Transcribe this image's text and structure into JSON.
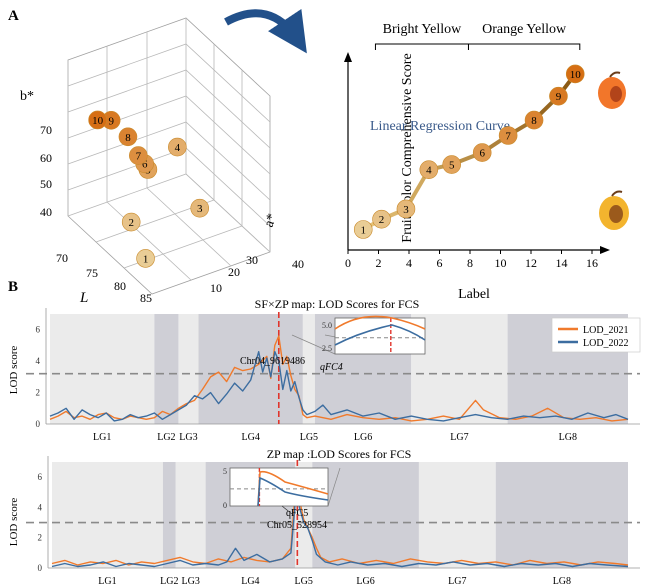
{
  "panel_labels": {
    "a": "A",
    "b": "B"
  },
  "chart_data": [
    {
      "id": "scatter3d",
      "type": "scatter",
      "axes": {
        "x_label": "L",
        "y_label": "a*",
        "z_label": "b*"
      },
      "x_ticks": [
        "70",
        "75",
        "80",
        "85"
      ],
      "y_ticks": [
        "10",
        "20",
        "30",
        "40"
      ],
      "z_ticks": [
        "40",
        "50",
        "60",
        "70"
      ],
      "points": [
        {
          "label": "1",
          "L": 84,
          "a": 8,
          "b": 35
        },
        {
          "label": "2",
          "L": 82,
          "a": 6,
          "b": 44
        },
        {
          "label": "3",
          "L": 80,
          "a": 30,
          "b": 38
        },
        {
          "label": "4",
          "L": 76,
          "a": 28,
          "b": 52
        },
        {
          "label": "5",
          "L": 79,
          "a": 15,
          "b": 53
        },
        {
          "label": "6",
          "L": 79,
          "a": 14,
          "b": 55
        },
        {
          "label": "7",
          "L": 79,
          "a": 12,
          "b": 58
        },
        {
          "label": "8",
          "L": 78,
          "a": 10,
          "b": 63
        },
        {
          "label": "9",
          "L": 77,
          "a": 6,
          "b": 68
        },
        {
          "label": "10",
          "L": 76,
          "a": 3,
          "b": 68
        }
      ]
    },
    {
      "id": "regression",
      "type": "line",
      "xlabel": "Label",
      "ylabel": "Fruit Color Comprehensive Score",
      "annotation": "Linear Regression Curve",
      "brackets": [
        {
          "label": "Bright Yellow",
          "from": 1.8,
          "to": 7.9
        },
        {
          "label": "Orange Yellow",
          "from": 7.9,
          "to": 15.2
        }
      ],
      "x_ticks": [
        "0",
        "2",
        "4",
        "6",
        "8",
        "10",
        "12",
        "14",
        "16"
      ],
      "xlim": [
        0,
        16
      ],
      "ylim": [
        0,
        11
      ],
      "points": [
        {
          "label": "1",
          "x": 1.0,
          "y": 1.2
        },
        {
          "label": "2",
          "x": 2.2,
          "y": 1.8
        },
        {
          "label": "3",
          "x": 3.8,
          "y": 2.4
        },
        {
          "label": "4",
          "x": 5.3,
          "y": 4.7
        },
        {
          "label": "5",
          "x": 6.8,
          "y": 5.0
        },
        {
          "label": "6",
          "x": 8.8,
          "y": 5.7
        },
        {
          "label": "7",
          "x": 10.5,
          "y": 6.7
        },
        {
          "label": "8",
          "x": 12.2,
          "y": 7.6
        },
        {
          "label": "9",
          "x": 13.8,
          "y": 9.0
        },
        {
          "label": "10",
          "x": 14.9,
          "y": 10.3
        }
      ]
    },
    {
      "id": "lod1",
      "type": "line",
      "title": "SF×ZP map: LOD Scores for FCS",
      "ylabel": "LOD score",
      "ylim": [
        0,
        7
      ],
      "y_ticks": [
        "0",
        "2",
        "4",
        "6"
      ],
      "threshold": 3.2,
      "linkage_groups": [
        "LG1",
        "LG2",
        "LG3",
        "LG4",
        "LG5",
        "LG6",
        "LG7",
        "LG8"
      ],
      "lg_bounds": [
        0,
        26,
        32,
        37,
        63,
        66,
        90,
        114,
        144
      ],
      "shaded": [
        1,
        3,
        5,
        7
      ],
      "peak_x": 57,
      "peak_label": "Chr04_9619486",
      "inset_label": "qFC4",
      "inset_ticks": [
        "5.0",
        "2.5"
      ],
      "legend": [
        "LOD_2021",
        "LOD_2022"
      ],
      "series": [
        {
          "name": "LOD_2021",
          "color": "#f07a2c",
          "points": [
            [
              0,
              0.3
            ],
            [
              2,
              0.5
            ],
            [
              4,
              0.8
            ],
            [
              6,
              0.4
            ],
            [
              8,
              0.5
            ],
            [
              10,
              0.3
            ],
            [
              12,
              0.6
            ],
            [
              14,
              0.7
            ],
            [
              16,
              0.4
            ],
            [
              18,
              0.3
            ],
            [
              20,
              0.5
            ],
            [
              22,
              0.4
            ],
            [
              24,
              0.3
            ],
            [
              26,
              0.4
            ],
            [
              28,
              0.8
            ],
            [
              30,
              0.6
            ],
            [
              32,
              1.0
            ],
            [
              34,
              1.3
            ],
            [
              36,
              1.5
            ],
            [
              38,
              2.2
            ],
            [
              40,
              3.0
            ],
            [
              42,
              3.3
            ],
            [
              44,
              2.7
            ],
            [
              46,
              3.6
            ],
            [
              48,
              3.4
            ],
            [
              50,
              3.5
            ],
            [
              52,
              3.8
            ],
            [
              54,
              4.3
            ],
            [
              55,
              2.9
            ],
            [
              56,
              5.0
            ],
            [
              57,
              5.6
            ],
            [
              58,
              3.8
            ],
            [
              59,
              4.3
            ],
            [
              60,
              3.1
            ],
            [
              61,
              2.2
            ],
            [
              62,
              1.8
            ],
            [
              63,
              0.6
            ],
            [
              64,
              0.4
            ],
            [
              66,
              0.5
            ],
            [
              70,
              0.3
            ],
            [
              74,
              0.6
            ],
            [
              78,
              0.4
            ],
            [
              82,
              0.3
            ],
            [
              86,
              0.4
            ],
            [
              90,
              0.2
            ],
            [
              94,
              0.3
            ],
            [
              98,
              0.5
            ],
            [
              102,
              0.3
            ],
            [
              106,
              1.5
            ],
            [
              108,
              0.9
            ],
            [
              112,
              0.4
            ],
            [
              116,
              0.3
            ],
            [
              120,
              0.5
            ],
            [
              124,
              1.0
            ],
            [
              128,
              0.4
            ],
            [
              132,
              0.3
            ],
            [
              136,
              0.4
            ],
            [
              140,
              0.2
            ],
            [
              144,
              0.3
            ]
          ]
        },
        {
          "name": "LOD_2022",
          "color": "#3c6da0",
          "points": [
            [
              0,
              0.5
            ],
            [
              2,
              0.7
            ],
            [
              4,
              1.0
            ],
            [
              6,
              0.3
            ],
            [
              8,
              0.9
            ],
            [
              10,
              0.6
            ],
            [
              12,
              0.4
            ],
            [
              14,
              0.7
            ],
            [
              16,
              0.2
            ],
            [
              18,
              0.3
            ],
            [
              20,
              0.6
            ],
            [
              22,
              0.4
            ],
            [
              24,
              0.5
            ],
            [
              26,
              0.7
            ],
            [
              28,
              0.3
            ],
            [
              30,
              0.6
            ],
            [
              32,
              0.9
            ],
            [
              34,
              1.2
            ],
            [
              36,
              1.8
            ],
            [
              38,
              1.6
            ],
            [
              40,
              2.0
            ],
            [
              42,
              1.3
            ],
            [
              44,
              1.9
            ],
            [
              46,
              2.6
            ],
            [
              48,
              2.1
            ],
            [
              50,
              2.8
            ],
            [
              52,
              4.6
            ],
            [
              53,
              3.3
            ],
            [
              54,
              4.2
            ],
            [
              55,
              3.0
            ],
            [
              56,
              4.6
            ],
            [
              57,
              4.0
            ],
            [
              58,
              2.2
            ],
            [
              59,
              3.4
            ],
            [
              60,
              2.1
            ],
            [
              61,
              2.7
            ],
            [
              62,
              1.7
            ],
            [
              63,
              0.9
            ],
            [
              64,
              0.6
            ],
            [
              66,
              0.8
            ],
            [
              68,
              1.2
            ],
            [
              70,
              0.6
            ],
            [
              74,
              0.9
            ],
            [
              78,
              0.5
            ],
            [
              82,
              0.7
            ],
            [
              86,
              0.3
            ],
            [
              90,
              0.5
            ],
            [
              94,
              0.3
            ],
            [
              98,
              0.2
            ],
            [
              102,
              0.4
            ],
            [
              106,
              0.6
            ],
            [
              110,
              0.4
            ],
            [
              114,
              0.3
            ],
            [
              118,
              0.5
            ],
            [
              122,
              0.4
            ],
            [
              126,
              0.5
            ],
            [
              130,
              0.3
            ],
            [
              134,
              0.7
            ],
            [
              138,
              0.4
            ],
            [
              141,
              0.6
            ],
            [
              144,
              0.3
            ]
          ]
        }
      ]
    },
    {
      "id": "lod2",
      "type": "line",
      "title": "ZP map :LOD Scores for FCS",
      "ylabel": "LOD score",
      "ylim": [
        0,
        7
      ],
      "y_ticks": [
        "0",
        "2",
        "4",
        "6"
      ],
      "threshold": 3.0,
      "linkage_groups": [
        "LG1",
        "LG2",
        "LG3",
        "LG4",
        "LG5",
        "LG6",
        "LG7",
        "LG8"
      ],
      "lg_bounds": [
        0,
        26,
        29,
        36,
        57,
        61,
        86,
        104,
        135
      ],
      "shaded": [
        1,
        3,
        5,
        7
      ],
      "peak_x": 57.5,
      "peak_label": "Chr05_528954",
      "inset_label": "qFC5",
      "inset_ticks": [
        "5",
        "0"
      ],
      "series": [
        {
          "name": "LOD_2021",
          "color": "#f07a2c",
          "points": [
            [
              0,
              0.3
            ],
            [
              3,
              0.5
            ],
            [
              6,
              0.2
            ],
            [
              9,
              0.4
            ],
            [
              12,
              0.3
            ],
            [
              15,
              0.5
            ],
            [
              18,
              0.2
            ],
            [
              21,
              0.4
            ],
            [
              24,
              0.3
            ],
            [
              27,
              0.5
            ],
            [
              30,
              0.7
            ],
            [
              33,
              0.4
            ],
            [
              36,
              0.3
            ],
            [
              39,
              0.6
            ],
            [
              42,
              0.4
            ],
            [
              45,
              0.7
            ],
            [
              48,
              0.5
            ],
            [
              51,
              0.4
            ],
            [
              54,
              0.6
            ],
            [
              56,
              1.3
            ],
            [
              57.3,
              6.2
            ],
            [
              58,
              4.5
            ],
            [
              59,
              3.2
            ],
            [
              60,
              2.6
            ],
            [
              61,
              2.0
            ],
            [
              62,
              1.3
            ],
            [
              63,
              0.7
            ],
            [
              65,
              0.4
            ],
            [
              68,
              0.6
            ],
            [
              72,
              0.3
            ],
            [
              76,
              0.5
            ],
            [
              80,
              0.3
            ],
            [
              84,
              0.6
            ],
            [
              88,
              0.4
            ],
            [
              92,
              0.3
            ],
            [
              96,
              0.5
            ],
            [
              100,
              0.3
            ],
            [
              104,
              0.4
            ],
            [
              108,
              0.2
            ],
            [
              112,
              0.5
            ],
            [
              116,
              0.3
            ],
            [
              120,
              0.4
            ],
            [
              124,
              0.2
            ],
            [
              128,
              0.4
            ],
            [
              132,
              0.3
            ],
            [
              135,
              0.2
            ]
          ]
        },
        {
          "name": "LOD_2022",
          "color": "#3c6da0",
          "points": [
            [
              0,
              0.1
            ],
            [
              3,
              0.3
            ],
            [
              6,
              0.1
            ],
            [
              9,
              0.2
            ],
            [
              12,
              0.4
            ],
            [
              15,
              0.1
            ],
            [
              18,
              0.3
            ],
            [
              21,
              0.2
            ],
            [
              24,
              0.1
            ],
            [
              27,
              0.3
            ],
            [
              30,
              0.5
            ],
            [
              33,
              0.2
            ],
            [
              36,
              0.3
            ],
            [
              39,
              0.2
            ],
            [
              41,
              0.4
            ],
            [
              43,
              1.3
            ],
            [
              45,
              0.5
            ],
            [
              48,
              0.9
            ],
            [
              51,
              0.4
            ],
            [
              54,
              0.6
            ],
            [
              56,
              1.0
            ],
            [
              57.3,
              5.3
            ],
            [
              58,
              4.0
            ],
            [
              59,
              3.0
            ],
            [
              60,
              2.6
            ],
            [
              61,
              1.8
            ],
            [
              62,
              0.9
            ],
            [
              64,
              0.4
            ],
            [
              67,
              0.2
            ],
            [
              70,
              0.4
            ],
            [
              74,
              0.2
            ],
            [
              78,
              0.3
            ],
            [
              82,
              0.1
            ],
            [
              86,
              0.3
            ],
            [
              90,
              0.2
            ],
            [
              94,
              0.4
            ],
            [
              98,
              0.2
            ],
            [
              102,
              0.3
            ],
            [
              106,
              0.1
            ],
            [
              110,
              0.3
            ],
            [
              114,
              0.2
            ],
            [
              118,
              0.3
            ],
            [
              122,
              0.1
            ],
            [
              126,
              0.3
            ],
            [
              130,
              0.2
            ],
            [
              135,
              0.1
            ]
          ]
        }
      ]
    }
  ]
}
